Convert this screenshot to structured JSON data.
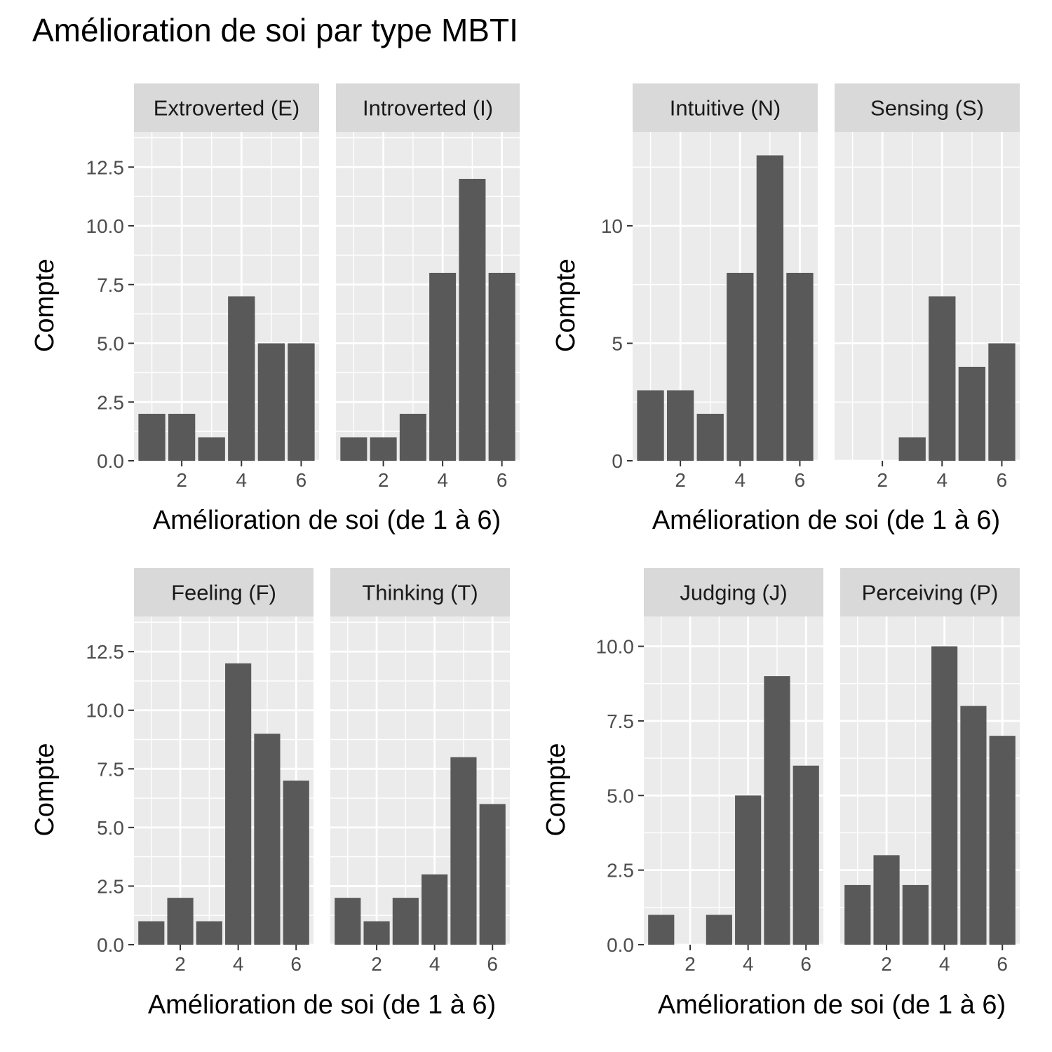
{
  "title": "Amélioration de soi par type MBTI",
  "colors": {
    "panel_bg": "#ebebeb",
    "strip_bg": "#d9d9d9",
    "bar": "#595959",
    "grid": "#ffffff",
    "tick": "#333333"
  },
  "chart_data": [
    {
      "type": "bar",
      "xlabel": "Amélioration de soi (de 1 à 6)",
      "ylabel": "Compte",
      "xlim": [
        0.4,
        6.6
      ],
      "ylim": [
        0,
        14
      ],
      "x_ticks": [
        2,
        4,
        6
      ],
      "y_ticks": [
        0,
        2.5,
        5,
        7.5,
        10,
        12.5
      ],
      "y_tick_labels": [
        "0.0",
        "2.5",
        "5.0",
        "7.5",
        "10.0",
        "12.5"
      ],
      "x": [
        1,
        2,
        3,
        4,
        5,
        6
      ],
      "facets": [
        {
          "name": "Extroverted (E)",
          "values": [
            2,
            2,
            1,
            7,
            5,
            5
          ]
        },
        {
          "name": "Introverted (I)",
          "values": [
            1,
            1,
            2,
            8,
            12,
            8
          ]
        }
      ]
    },
    {
      "type": "bar",
      "xlabel": "Amélioration de soi (de 1 à 6)",
      "ylabel": "Compte",
      "xlim": [
        0.4,
        6.6
      ],
      "ylim": [
        0,
        14
      ],
      "x_ticks": [
        2,
        4,
        6
      ],
      "y_ticks": [
        0,
        5,
        10
      ],
      "y_tick_labels": [
        "0",
        "5",
        "10"
      ],
      "x": [
        1,
        2,
        3,
        4,
        5,
        6
      ],
      "facets": [
        {
          "name": "Intuitive (N)",
          "values": [
            3,
            3,
            2,
            8,
            13,
            8
          ]
        },
        {
          "name": "Sensing (S)",
          "values": [
            0,
            0,
            1,
            7,
            4,
            5
          ]
        }
      ]
    },
    {
      "type": "bar",
      "xlabel": "Amélioration de soi (de 1 à 6)",
      "ylabel": "Compte",
      "xlim": [
        0.4,
        6.6
      ],
      "ylim": [
        0,
        14
      ],
      "x_ticks": [
        2,
        4,
        6
      ],
      "y_ticks": [
        0,
        2.5,
        5,
        7.5,
        10,
        12.5
      ],
      "y_tick_labels": [
        "0.0",
        "2.5",
        "5.0",
        "7.5",
        "10.0",
        "12.5"
      ],
      "x": [
        1,
        2,
        3,
        4,
        5,
        6
      ],
      "facets": [
        {
          "name": "Feeling (F)",
          "values": [
            1,
            2,
            1,
            12,
            9,
            7
          ]
        },
        {
          "name": "Thinking (T)",
          "values": [
            2,
            1,
            2,
            3,
            8,
            6
          ]
        }
      ]
    },
    {
      "type": "bar",
      "xlabel": "Amélioration de soi (de 1 à 6)",
      "ylabel": "Compte",
      "xlim": [
        0.4,
        6.6
      ],
      "ylim": [
        0,
        11
      ],
      "x_ticks": [
        2,
        4,
        6
      ],
      "y_ticks": [
        0,
        2.5,
        5,
        7.5,
        10
      ],
      "y_tick_labels": [
        "0.0",
        "2.5",
        "5.0",
        "7.5",
        "10.0"
      ],
      "x": [
        1,
        2,
        3,
        4,
        5,
        6
      ],
      "facets": [
        {
          "name": "Judging (J)",
          "values": [
            1,
            0,
            1,
            5,
            9,
            6
          ]
        },
        {
          "name": "Perceiving (P)",
          "values": [
            2,
            3,
            2,
            10,
            8,
            7
          ]
        }
      ]
    }
  ]
}
